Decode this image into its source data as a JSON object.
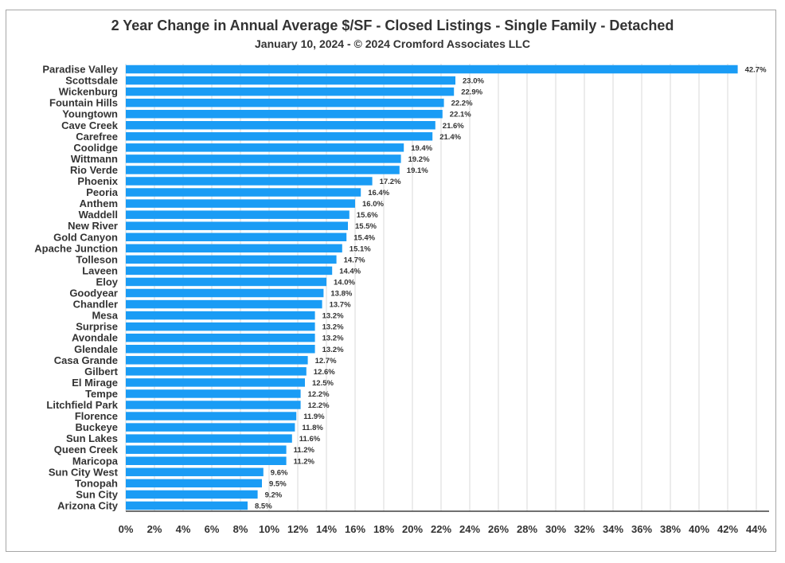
{
  "chart_data": {
    "type": "bar",
    "orientation": "horizontal",
    "title": "2 Year Change in Annual Average $/SF - Closed Listings - Single Family - Detached",
    "subtitle": "January 10, 2024 - © 2024 Cromford Associates LLC",
    "xlabel": "",
    "ylabel": "",
    "xlim": [
      0,
      44
    ],
    "grid": true,
    "legend": "none",
    "bar_color": "#1a9cf5",
    "categories": [
      "Paradise Valley",
      "Scottsdale",
      "Wickenburg",
      "Fountain Hills",
      "Youngtown",
      "Cave Creek",
      "Carefree",
      "Coolidge",
      "Wittmann",
      "Rio Verde",
      "Phoenix",
      "Peoria",
      "Anthem",
      "Waddell",
      "New River",
      "Gold Canyon",
      "Apache Junction",
      "Tolleson",
      "Laveen",
      "Eloy",
      "Goodyear",
      "Chandler",
      "Mesa",
      "Surprise",
      "Avondale",
      "Glendale",
      "Casa Grande",
      "Gilbert",
      "El Mirage",
      "Tempe",
      "Litchfield Park",
      "Florence",
      "Buckeye",
      "Sun Lakes",
      "Queen Creek",
      "Maricopa",
      "Sun City West",
      "Tonopah",
      "Sun City",
      "Arizona City"
    ],
    "values": [
      42.7,
      23.0,
      22.9,
      22.2,
      22.1,
      21.6,
      21.4,
      19.4,
      19.2,
      19.1,
      17.2,
      16.4,
      16.0,
      15.6,
      15.5,
      15.4,
      15.1,
      14.7,
      14.4,
      14.0,
      13.8,
      13.7,
      13.2,
      13.2,
      13.2,
      13.2,
      12.7,
      12.6,
      12.5,
      12.2,
      12.2,
      11.9,
      11.8,
      11.6,
      11.2,
      11.2,
      9.6,
      9.5,
      9.2,
      8.5
    ],
    "data_labels": [
      "42.7%",
      "23.0%",
      "22.9%",
      "22.2%",
      "22.1%",
      "21.6%",
      "21.4%",
      "19.4%",
      "19.2%",
      "19.1%",
      "17.2%",
      "16.4%",
      "16.0%",
      "15.6%",
      "15.5%",
      "15.4%",
      "15.1%",
      "14.7%",
      "14.4%",
      "14.0%",
      "13.8%",
      "13.7%",
      "13.2%",
      "13.2%",
      "13.2%",
      "13.2%",
      "12.7%",
      "12.6%",
      "12.5%",
      "12.2%",
      "12.2%",
      "11.9%",
      "11.8%",
      "11.6%",
      "11.2%",
      "11.2%",
      "9.6%",
      "9.5%",
      "9.2%",
      "8.5%"
    ],
    "x_ticks": [
      "0%",
      "2%",
      "4%",
      "6%",
      "8%",
      "10%",
      "12%",
      "14%",
      "16%",
      "18%",
      "20%",
      "22%",
      "24%",
      "26%",
      "28%",
      "30%",
      "32%",
      "34%",
      "36%",
      "38%",
      "40%",
      "42%",
      "44%"
    ]
  }
}
